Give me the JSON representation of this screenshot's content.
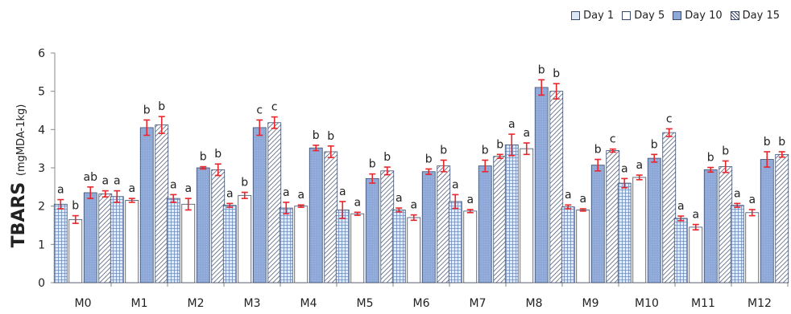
{
  "chart_data": {
    "type": "bar",
    "ylabel_main": "TBARS",
    "ylabel_unit": "(mgMDA-1kg)",
    "ylim": [
      0,
      6
    ],
    "yticks": [
      0,
      1,
      2,
      3,
      4,
      5,
      6
    ],
    "grid": false,
    "legend_position": "top-right",
    "categories": [
      "M0",
      "M1",
      "M2",
      "M3",
      "M4",
      "M5",
      "M6",
      "M7",
      "M8",
      "M9",
      "M10",
      "M11",
      "M12"
    ],
    "series": [
      {
        "name": "Day 1",
        "pattern": "grid",
        "color": "#dbe6f6",
        "values": [
          2.05,
          2.25,
          2.2,
          2.02,
          1.95,
          1.9,
          1.9,
          2.12,
          3.6,
          1.98,
          2.6,
          1.68,
          2.02
        ],
        "errors": [
          0.12,
          0.15,
          0.1,
          0.05,
          0.15,
          0.22,
          0.05,
          0.18,
          0.28,
          0.05,
          0.12,
          0.06,
          0.05
        ],
        "labels": [
          "a",
          "a",
          "a",
          "a",
          "a",
          "a",
          "a",
          "a",
          "a",
          "a",
          "a",
          "a",
          "a"
        ]
      },
      {
        "name": "Day 5",
        "pattern": "plain",
        "color": "#ffffff",
        "values": [
          1.65,
          2.15,
          2.05,
          2.28,
          2.0,
          1.8,
          1.7,
          1.87,
          3.5,
          1.9,
          2.75,
          1.45,
          1.83
        ],
        "errors": [
          0.1,
          0.05,
          0.15,
          0.08,
          0.03,
          0.04,
          0.07,
          0.04,
          0.15,
          0.03,
          0.06,
          0.07,
          0.08
        ],
        "labels": [
          "b",
          "a",
          "a",
          "b",
          "a",
          "a",
          "a",
          "a",
          "a",
          "a",
          "a",
          "a",
          "a"
        ]
      },
      {
        "name": "Day 10",
        "pattern": "solid",
        "color": "#8ea9d8",
        "values": [
          2.35,
          4.05,
          3.0,
          4.05,
          3.52,
          2.72,
          2.9,
          3.05,
          5.1,
          3.07,
          3.25,
          2.95,
          3.22
        ],
        "errors": [
          0.15,
          0.2,
          0.03,
          0.2,
          0.07,
          0.12,
          0.07,
          0.15,
          0.2,
          0.15,
          0.1,
          0.06,
          0.2
        ],
        "labels": [
          "ab",
          "b",
          "b",
          "c",
          "b",
          "b",
          "b",
          "b",
          "b",
          "b",
          "b",
          "b",
          "b"
        ]
      },
      {
        "name": "Day 15",
        "pattern": "hatch",
        "color": "#ffffff",
        "values": [
          2.32,
          4.12,
          2.95,
          4.18,
          3.42,
          2.92,
          3.05,
          3.3,
          5.0,
          3.45,
          3.92,
          3.03,
          3.35
        ],
        "errors": [
          0.08,
          0.22,
          0.15,
          0.15,
          0.15,
          0.1,
          0.15,
          0.05,
          0.2,
          0.04,
          0.1,
          0.15,
          0.07
        ],
        "labels": [
          "a",
          "b",
          "b",
          "c",
          "b",
          "b",
          "b",
          "b",
          "b",
          "c",
          "c",
          "b",
          "b"
        ]
      }
    ]
  },
  "colors": {
    "bar_stroke": "#3a4a6a",
    "error_bar": "#e8262b",
    "axis": "#888888",
    "text": "#222222"
  }
}
